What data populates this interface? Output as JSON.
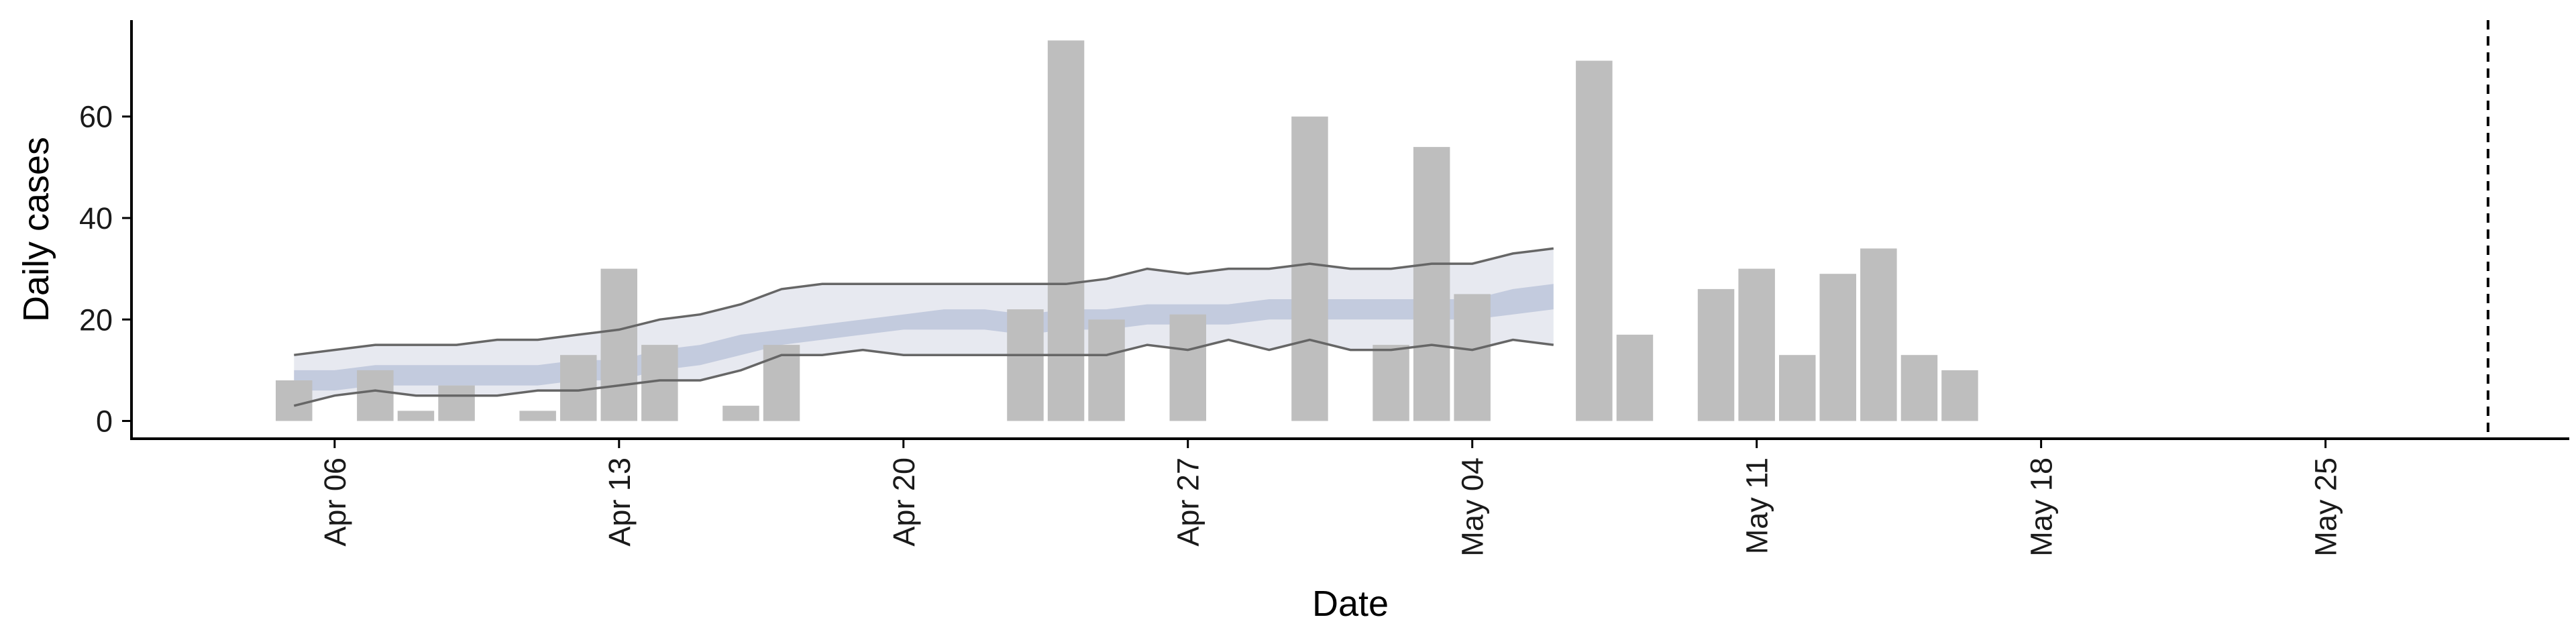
{
  "chart_data": {
    "type": "bar",
    "xlabel": "Date",
    "ylabel": "Daily cases",
    "x_range": [
      "2020-04-01",
      "2020-05-31"
    ],
    "ylim": [
      -3.5,
      79
    ],
    "yticks": [
      0,
      20,
      40,
      60
    ],
    "xticks": [
      "2020-04-06",
      "2020-04-13",
      "2020-04-20",
      "2020-04-27",
      "2020-05-04",
      "2020-05-11",
      "2020-05-18",
      "2020-05-25"
    ],
    "xtick_labels": [
      "Apr 06",
      "Apr 13",
      "Apr 20",
      "Apr 27",
      "May 04",
      "May 11",
      "May 18",
      "May 25"
    ],
    "grid": false,
    "colors": {
      "bars": "#bebebe",
      "ci_90": "#dde0ea",
      "ci_50": "#b4bdd6",
      "bound_lines": "#666666",
      "vline": "#000000"
    },
    "cases": {
      "dates": [
        "2020-04-05",
        "2020-04-07",
        "2020-04-08",
        "2020-04-09",
        "2020-04-11",
        "2020-04-12",
        "2020-04-13",
        "2020-04-14",
        "2020-04-16",
        "2020-04-17",
        "2020-04-23",
        "2020-04-24",
        "2020-04-25",
        "2020-04-27",
        "2020-04-30",
        "2020-05-02",
        "2020-05-03",
        "2020-05-04",
        "2020-05-07",
        "2020-05-08",
        "2020-05-10",
        "2020-05-11",
        "2020-05-12",
        "2020-05-13",
        "2020-05-14",
        "2020-05-15",
        "2020-05-16"
      ],
      "values": [
        8,
        10,
        2,
        7,
        2,
        13,
        30,
        15,
        3,
        15,
        22,
        75,
        20,
        21,
        60,
        15,
        54,
        25,
        71,
        17,
        26,
        30,
        13,
        29,
        34,
        13,
        10
      ]
    },
    "estimate": {
      "dates": [
        "2020-04-05",
        "2020-04-06",
        "2020-04-07",
        "2020-04-08",
        "2020-04-09",
        "2020-04-10",
        "2020-04-11",
        "2020-04-12",
        "2020-04-13",
        "2020-04-14",
        "2020-04-15",
        "2020-04-16",
        "2020-04-17",
        "2020-04-18",
        "2020-04-19",
        "2020-04-20",
        "2020-04-21",
        "2020-04-22",
        "2020-04-23",
        "2020-04-24",
        "2020-04-25",
        "2020-04-26",
        "2020-04-27",
        "2020-04-28",
        "2020-04-29",
        "2020-04-30",
        "2020-05-01",
        "2020-05-02",
        "2020-05-03",
        "2020-05-04",
        "2020-05-05",
        "2020-05-06"
      ],
      "upper_90": [
        13,
        14,
        15,
        15,
        15,
        16,
        16,
        17,
        18,
        20,
        21,
        23,
        26,
        27,
        27,
        27,
        27,
        27,
        27,
        27,
        28,
        30,
        29,
        30,
        30,
        31,
        30,
        30,
        31,
        31,
        33,
        34
      ],
      "lower_90": [
        3,
        5,
        6,
        5,
        5,
        5,
        6,
        6,
        7,
        8,
        8,
        10,
        13,
        13,
        14,
        13,
        13,
        13,
        13,
        13,
        13,
        15,
        14,
        16,
        14,
        16,
        14,
        14,
        15,
        14,
        16,
        15
      ],
      "upper_50": [
        10,
        10,
        11,
        11,
        11,
        11,
        11,
        12,
        12,
        14,
        15,
        17,
        18,
        19,
        20,
        21,
        22,
        22,
        21,
        22,
        22,
        23,
        23,
        23,
        24,
        24,
        24,
        24,
        24,
        24,
        26,
        27
      ],
      "lower_50": [
        6,
        6,
        7,
        7,
        7,
        7,
        7,
        8,
        8,
        10,
        11,
        13,
        15,
        16,
        17,
        18,
        18,
        18,
        17,
        18,
        18,
        19,
        19,
        19,
        20,
        20,
        20,
        20,
        20,
        20,
        21,
        22
      ]
    },
    "vline_date": "2020-05-29"
  }
}
